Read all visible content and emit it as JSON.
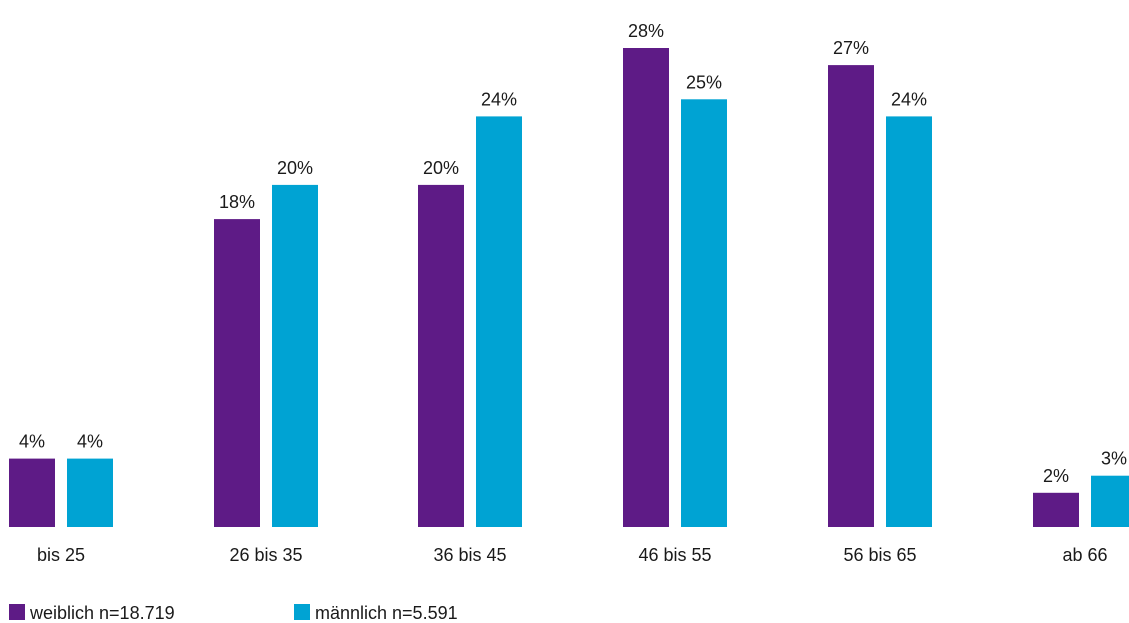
{
  "chart_data": {
    "type": "bar",
    "categories": [
      "bis 25",
      "26 bis 35",
      "36 bis 45",
      "46 bis 55",
      "56 bis 65",
      "ab 66"
    ],
    "series": [
      {
        "name": "weiblich n=18.719",
        "color": "#5e1b86",
        "values": [
          4,
          18,
          20,
          28,
          27,
          2
        ],
        "labels": [
          "4%",
          "18%",
          "20%",
          "28%",
          "27%",
          "2%"
        ]
      },
      {
        "name": "männlich n=5.591",
        "color": "#00a3d3",
        "values": [
          4,
          20,
          24,
          25,
          24,
          3
        ],
        "labels": [
          "4%",
          "20%",
          "24%",
          "25%",
          "24%",
          "3%"
        ]
      }
    ],
    "unit": "%",
    "ylim": [
      0,
      28
    ],
    "grid": false,
    "legend_position": "bottom-left"
  }
}
